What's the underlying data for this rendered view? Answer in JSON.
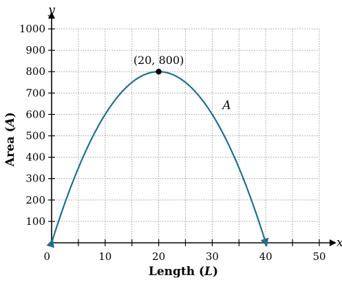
{
  "chart_data": {
    "type": "line",
    "x_axis_var": "x",
    "y_axis_var": "y",
    "xlabel": {
      "text": "Length",
      "symbol": "L"
    },
    "ylabel": {
      "text": "Area",
      "symbol": "A"
    },
    "xlim": [
      0,
      50
    ],
    "ylim": [
      0,
      1000
    ],
    "x_ticks": [
      0,
      10,
      20,
      30,
      40,
      50
    ],
    "x_tick_labels": [
      "0",
      "10",
      "20",
      "30",
      "40",
      "50"
    ],
    "x_grid_step": 5,
    "y_ticks": [
      100,
      200,
      300,
      400,
      500,
      600,
      700,
      800,
      900,
      1000
    ],
    "y_tick_labels": [
      "100",
      "200",
      "300",
      "400",
      "500",
      "600",
      "700",
      "800",
      "900",
      "1000"
    ],
    "grid": true,
    "series": [
      {
        "name": "A",
        "color": "#1f6f8b",
        "function": "A = 80L - 2L^2",
        "x": [
          0,
          5,
          10,
          15,
          20,
          25,
          30,
          35,
          40
        ],
        "y": [
          0,
          350,
          600,
          750,
          800,
          750,
          600,
          350,
          0
        ],
        "arrows_at_ends": true
      }
    ],
    "annotations": [
      {
        "x": 20,
        "y": 800,
        "label": "(20, 800)"
      }
    ]
  }
}
